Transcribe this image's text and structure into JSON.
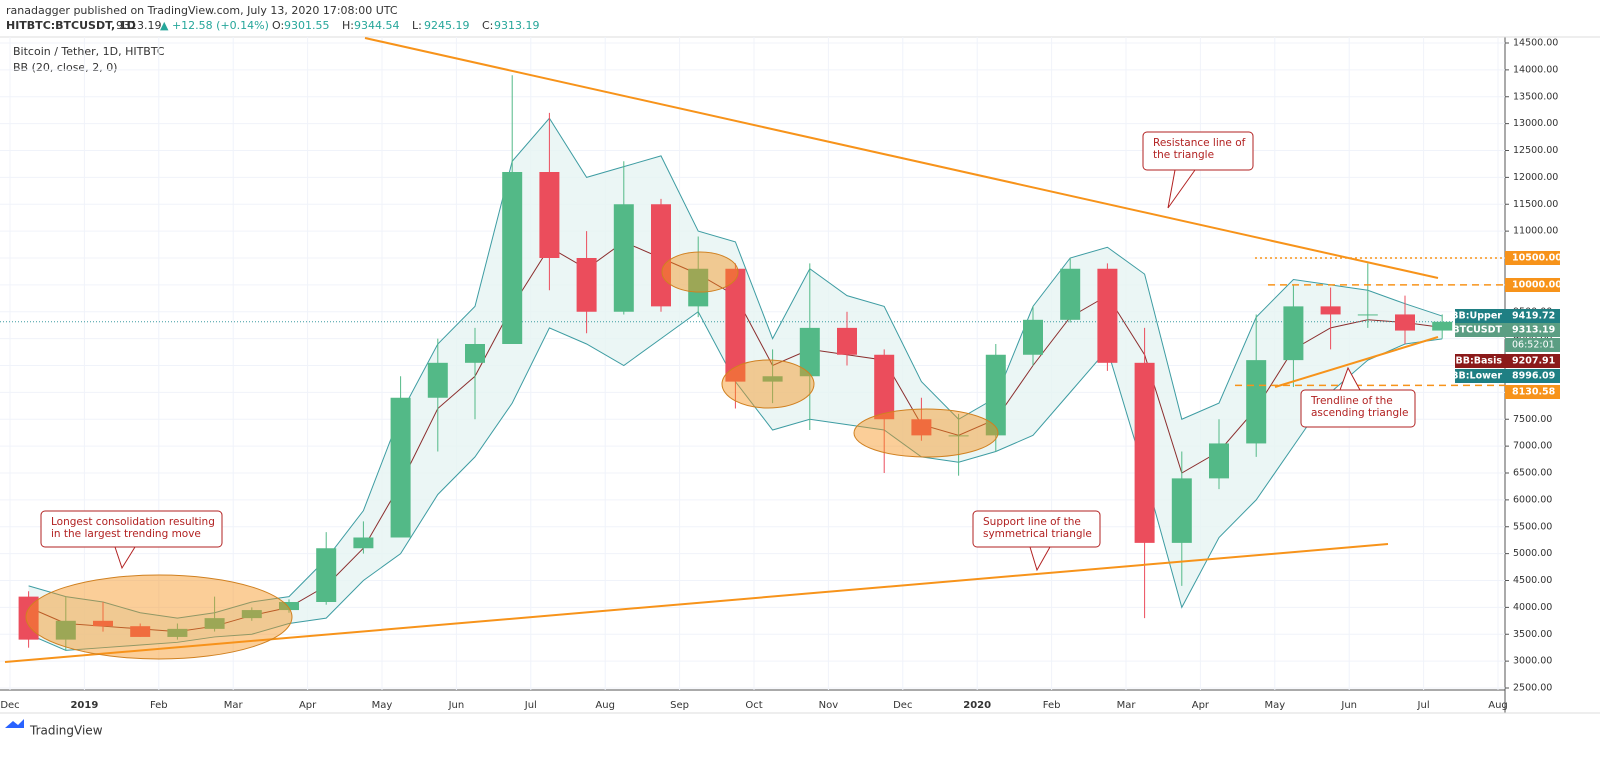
{
  "header": {
    "publisher": "ranadagger published on TradingView.com, July 13, 2020 17:08:00 UTC",
    "symbol": "HITBTC:BTCUSDT, 1D",
    "last": 9313.19,
    "change": "▲ +12.58 (+0.14%)",
    "ohlc": [
      {
        "label": "O:",
        "value": 9301.55
      },
      {
        "label": "H:",
        "value": 9344.54
      },
      {
        "label": "L:",
        "value": 9245.19
      },
      {
        "label": "C:",
        "value": 9313.19
      }
    ]
  },
  "chart_data": {
    "type": "candlestick",
    "title": "Bitcoin / Tether, 1D, HITBTC",
    "subtitle": "BB (20, close, 2, 0)",
    "month_labels": [
      "Dec",
      "2019",
      "Feb",
      "Mar",
      "Apr",
      "May",
      "Jun",
      "Jul",
      "Aug",
      "Sep",
      "Oct",
      "Nov",
      "Dec",
      "2020",
      "Feb",
      "Mar",
      "Apr",
      "May",
      "Jun",
      "Jul",
      "Aug"
    ],
    "categories": [
      null,
      null,
      null,
      null,
      null,
      null,
      null,
      null,
      null,
      null,
      null,
      null,
      null,
      null,
      null,
      null,
      null,
      null,
      null,
      null,
      null,
      null,
      null,
      null,
      null,
      null,
      null,
      null,
      null,
      null,
      null,
      null,
      null,
      null,
      null,
      null,
      null,
      null,
      null
    ],
    "open": [
      4200,
      3400,
      3750,
      3650,
      3450,
      3600,
      3800,
      3950,
      4100,
      5100,
      5300,
      7900,
      8550,
      8900,
      12100,
      10500,
      9500,
      11500,
      9600,
      10300,
      8200,
      8300,
      9200,
      8700,
      7500,
      7200,
      7200,
      8700,
      9350,
      10300,
      8550,
      5200,
      6400,
      7050,
      8600,
      9600,
      9450,
      9450,
      9150
    ],
    "high": [
      4300,
      4200,
      4100,
      3700,
      3700,
      4200,
      4000,
      4150,
      5400,
      5600,
      8300,
      9000,
      9200,
      13900,
      13200,
      11000,
      12300,
      11600,
      10900,
      10400,
      8800,
      10400,
      9500,
      8800,
      7900,
      7600,
      8900,
      9600,
      10500,
      10400,
      9200,
      6900,
      7500,
      9450,
      10000,
      9950,
      10400,
      9800,
      9450
    ],
    "low": [
      3250,
      3200,
      3550,
      3450,
      3400,
      3550,
      3750,
      3900,
      4050,
      5000,
      5300,
      6900,
      7500,
      8900,
      9900,
      9100,
      9450,
      9500,
      9400,
      7700,
      7800,
      7300,
      8500,
      6500,
      7100,
      6450,
      6900,
      8500,
      9300,
      8400,
      3800,
      4400,
      6200,
      6800,
      8100,
      8800,
      9200,
      8900,
      9000
    ],
    "close": [
      3400,
      3750,
      3650,
      3450,
      3600,
      3800,
      3950,
      4100,
      5100,
      5300,
      7900,
      8550,
      8900,
      12100,
      10500,
      9500,
      11500,
      9600,
      10300,
      8200,
      8300,
      9200,
      8700,
      7500,
      7200,
      7200,
      8700,
      9350,
      10300,
      8550,
      5200,
      6400,
      7050,
      8600,
      9600,
      9450,
      9450,
      9150,
      9313.19
    ],
    "bb": {
      "upper": [
        4400,
        4200,
        4100,
        3900,
        3800,
        3900,
        4100,
        4200,
        4900,
        5800,
        7600,
        8900,
        9600,
        12300,
        13100,
        12000,
        12200,
        12400,
        11000,
        10800,
        9000,
        10300,
        9800,
        9600,
        8200,
        7500,
        7900,
        9600,
        10500,
        10700,
        10200,
        7500,
        7800,
        9400,
        10100,
        10000,
        9900,
        9650,
        9419.72
      ],
      "basis": [
        4000,
        3700,
        3650,
        3600,
        3550,
        3650,
        3850,
        4000,
        4400,
        5100,
        6300,
        7700,
        8300,
        9600,
        10700,
        10300,
        10800,
        10500,
        10200,
        9800,
        8500,
        8800,
        8700,
        8600,
        7400,
        7200,
        7500,
        8500,
        9400,
        9800,
        8700,
        6500,
        6900,
        7700,
        8800,
        9200,
        9350,
        9300,
        9207.91
      ],
      "lower": [
        3500,
        3200,
        3250,
        3300,
        3350,
        3450,
        3500,
        3700,
        3800,
        4500,
        5000,
        6100,
        6800,
        7800,
        9200,
        8900,
        8500,
        9000,
        9500,
        8200,
        7300,
        7500,
        7400,
        7300,
        6800,
        6700,
        6900,
        7200,
        8000,
        8800,
        6500,
        4000,
        5300,
        6000,
        7000,
        8000,
        8600,
        8900,
        8996.09
      ]
    },
    "colors": {
      "up": "#53b987",
      "down": "#eb4d5c",
      "band": "#3d9ca2",
      "basis": "#8b2e2e",
      "band_fill": "#e6f4f3",
      "drawing": "#f7931a"
    },
    "ylim": [
      2500,
      14500
    ],
    "yticks": [
      {
        "value": 14500,
        "label": "14500.00"
      },
      {
        "value": 14000,
        "label": "14000.00"
      },
      {
        "value": 13500,
        "label": "13500.00"
      },
      {
        "value": 13000,
        "label": "13000.00"
      },
      {
        "value": 12500,
        "label": "12500.00"
      },
      {
        "value": 12000,
        "label": "12000.00"
      },
      {
        "value": 11500,
        "label": "11500.00"
      },
      {
        "value": 11000,
        "label": "11000.00"
      },
      {
        "value": 10500,
        "label": "10500.00"
      },
      {
        "value": 10000,
        "label": "10000.00"
      },
      {
        "value": 9500,
        "label": "9500.00"
      },
      {
        "value": 9000,
        "label": "9000.00"
      },
      {
        "value": 8500,
        "label": "8500.00"
      },
      {
        "value": 8000,
        "label": "8000.00"
      },
      {
        "value": 7500,
        "label": "7500.00"
      },
      {
        "value": 7000,
        "label": "7000.00"
      },
      {
        "value": 6500,
        "label": "6500.00"
      },
      {
        "value": 6000,
        "label": "6000.00"
      },
      {
        "value": 5500,
        "label": "5500.00"
      },
      {
        "value": 5000,
        "label": "5000.00"
      },
      {
        "value": 4500,
        "label": "4500.00"
      },
      {
        "value": 4000,
        "label": "4000.00"
      },
      {
        "value": 3500,
        "label": "3500.00"
      },
      {
        "value": 3000,
        "label": "3000.00"
      },
      {
        "value": 2500,
        "label": "2500.00"
      }
    ],
    "grid": true,
    "price_labels": [
      {
        "value": {
          "value": 10500,
          "label": "10500.00"
        },
        "color": "#f7931a",
        "line": "dotted"
      },
      {
        "value": {
          "value": 10000,
          "label": "10000.00"
        },
        "color": "#f7931a",
        "line": "dashed"
      },
      {
        "name": "BB:Upper",
        "value": 9419.72,
        "color": "#1f7f83"
      },
      {
        "name": "BTCUSDT",
        "value": 9313.19,
        "color": "#5b9e83",
        "countdown": "06:52:01"
      },
      {
        "name": "BB:Basis",
        "value": 9207.91,
        "color": "#8b1a1a"
      },
      {
        "name": "BB:Lower",
        "value": 8996.09,
        "color": "#1f7f83"
      },
      {
        "value": {
          "value": 8130.58,
          "label": "8130.58"
        },
        "color": "#f7931a",
        "line": "dashed"
      }
    ],
    "annotations": [
      {
        "lines": [
          "Resistance line of",
          "the triangle"
        ]
      },
      {
        "lines": [
          "Longest consolidation resulting",
          "in the largest trending move"
        ]
      },
      {
        "lines": [
          "Support line of the",
          "symmetrical triangle"
        ]
      },
      {
        "lines": [
          "Trendline of the",
          "ascending triangle"
        ]
      }
    ]
  },
  "footer": {
    "brand": "TradingView"
  }
}
